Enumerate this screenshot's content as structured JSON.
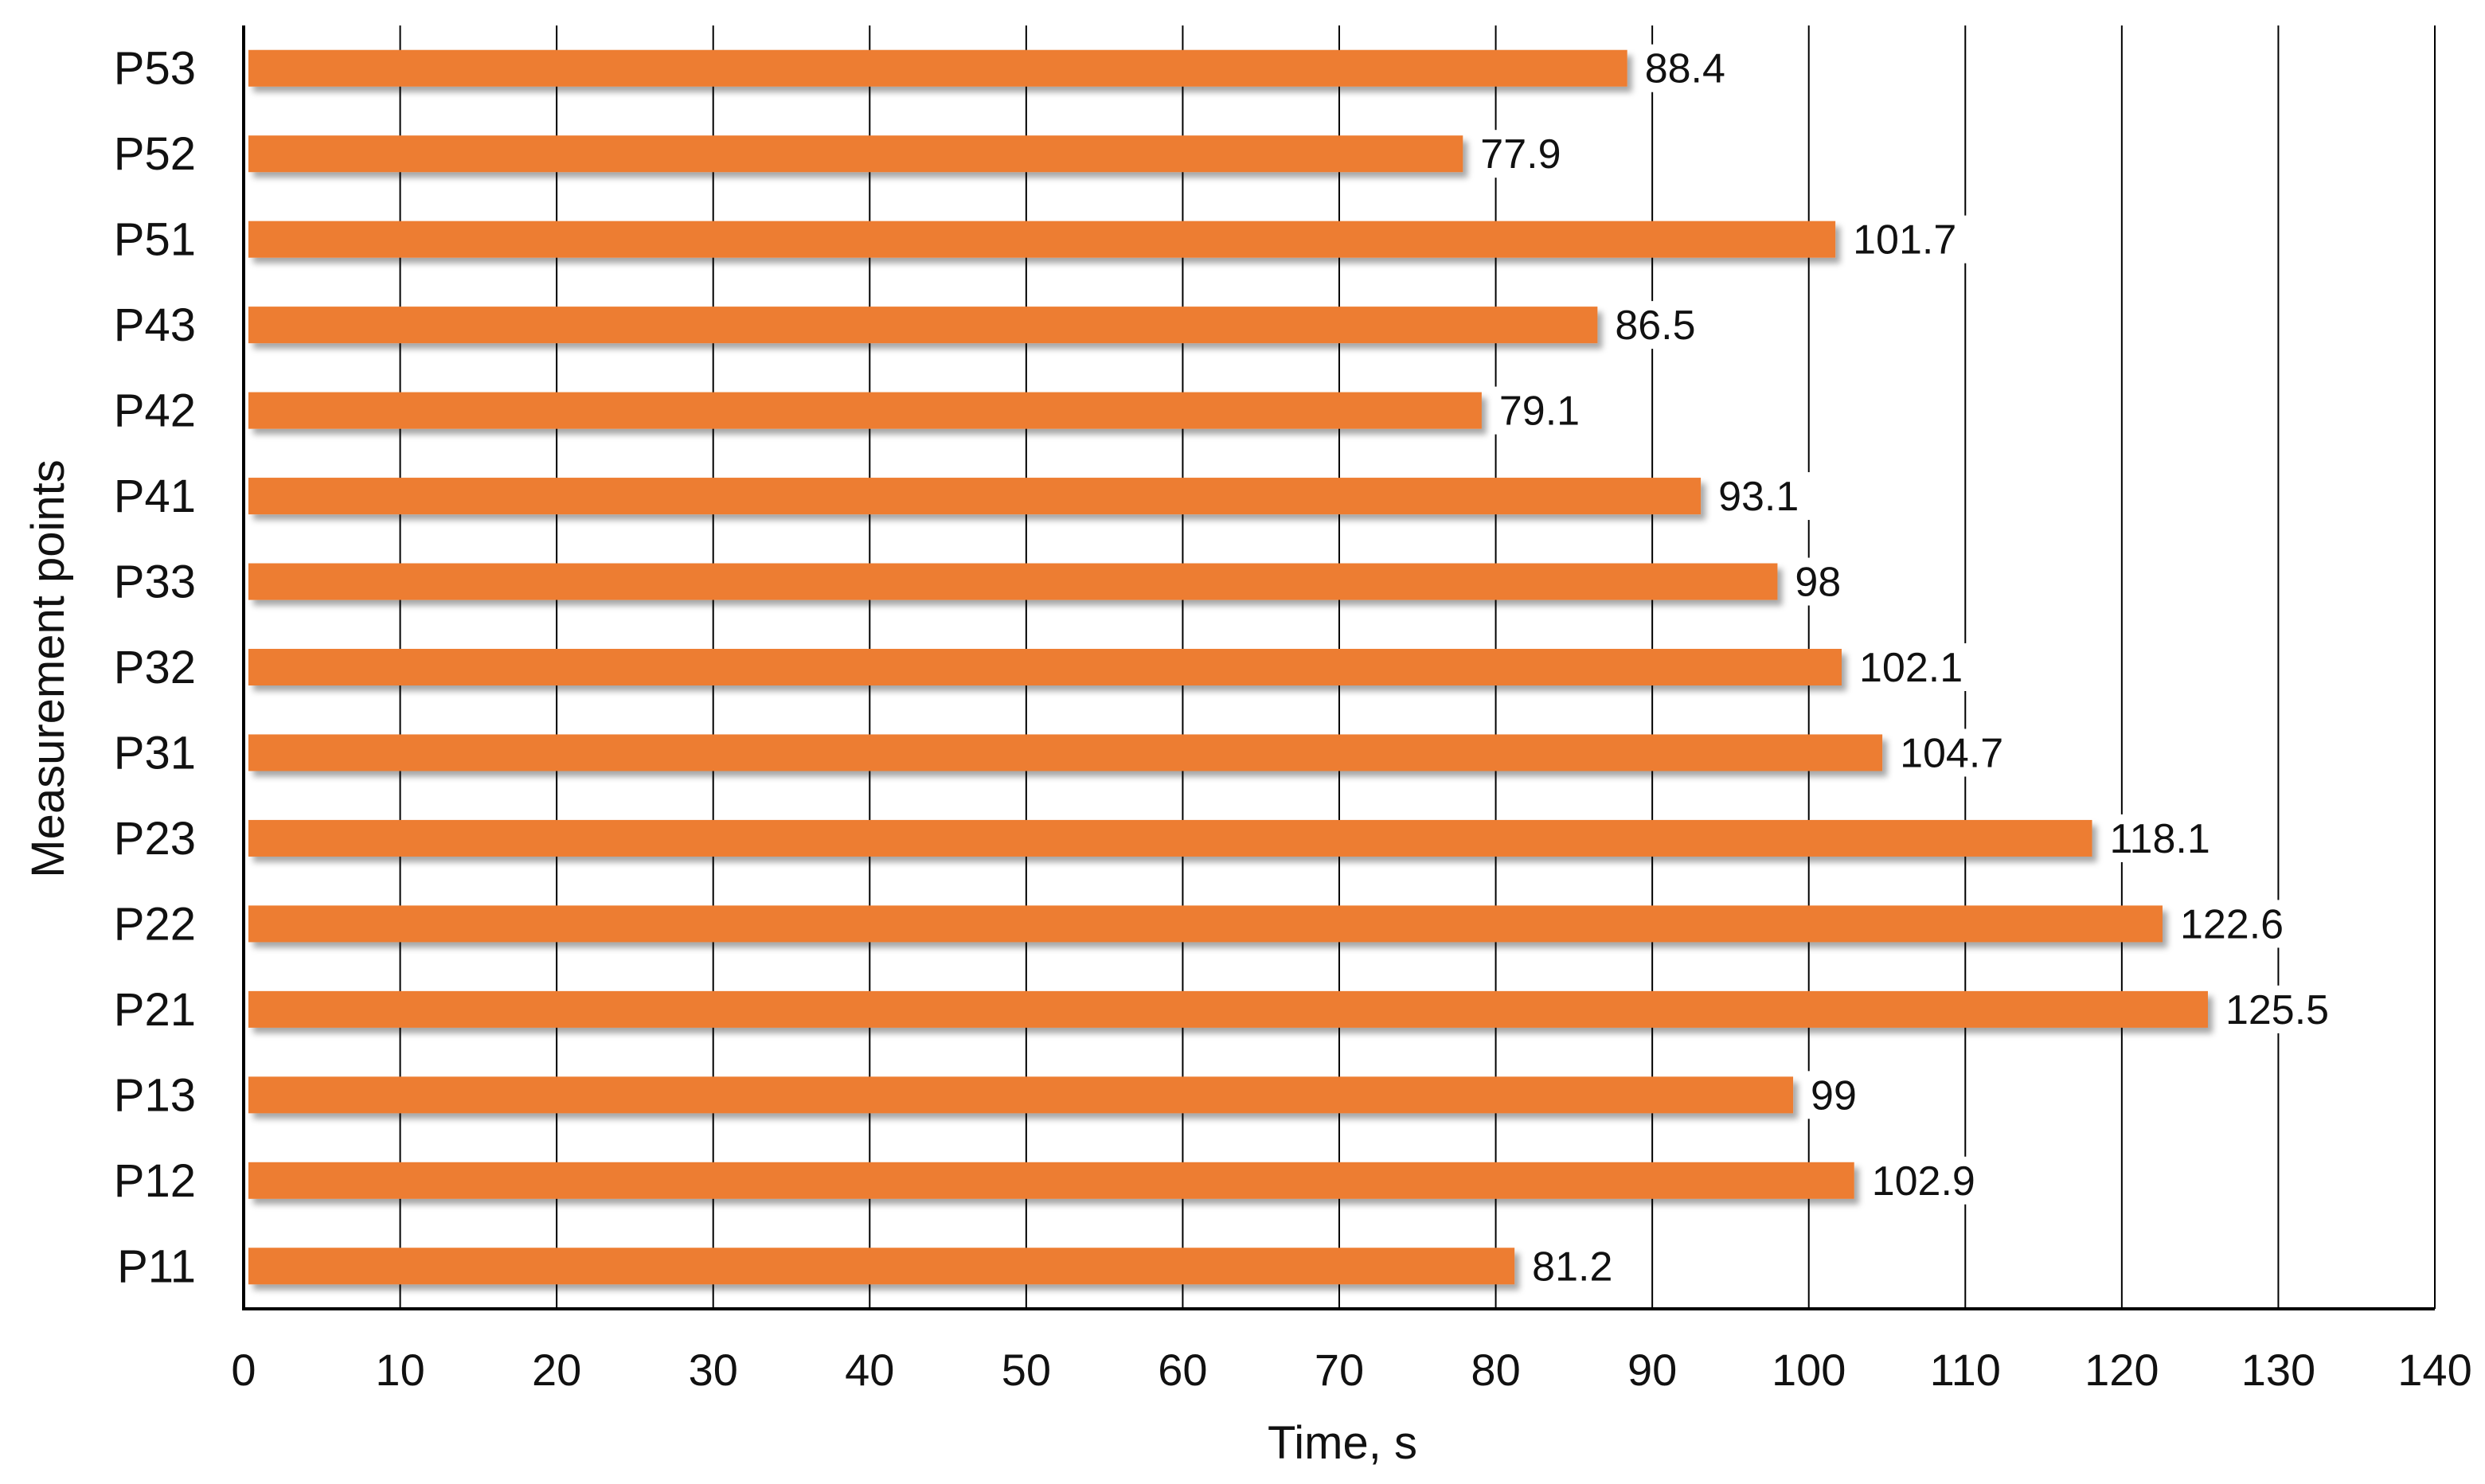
{
  "chart_data": {
    "type": "bar",
    "orientation": "horizontal",
    "title": "",
    "xlabel": "Time, s",
    "ylabel": "Measurement points",
    "xlim": [
      0,
      140
    ],
    "xticks": [
      0,
      10,
      20,
      30,
      40,
      50,
      60,
      70,
      80,
      90,
      100,
      110,
      120,
      130,
      140
    ],
    "grid": "vertical",
    "legend": "none",
    "bar_color": "#ED7D31",
    "categories": [
      "P53",
      "P52",
      "P51",
      "P43",
      "P42",
      "P41",
      "P33",
      "P32",
      "P31",
      "P23",
      "P22",
      "P21",
      "P13",
      "P12",
      "P11"
    ],
    "values": [
      88.4,
      77.9,
      101.7,
      86.5,
      79.1,
      93.1,
      98,
      102.1,
      104.7,
      118.1,
      122.6,
      125.5,
      99,
      102.9,
      81.2
    ],
    "value_labels": [
      "88.4",
      "77.9",
      "101.7",
      "86.5",
      "79.1",
      "93.1",
      "98",
      "102.1",
      "104.7",
      "118.1",
      "122.6",
      "125.5",
      "99",
      "102.9",
      "81.2"
    ]
  }
}
